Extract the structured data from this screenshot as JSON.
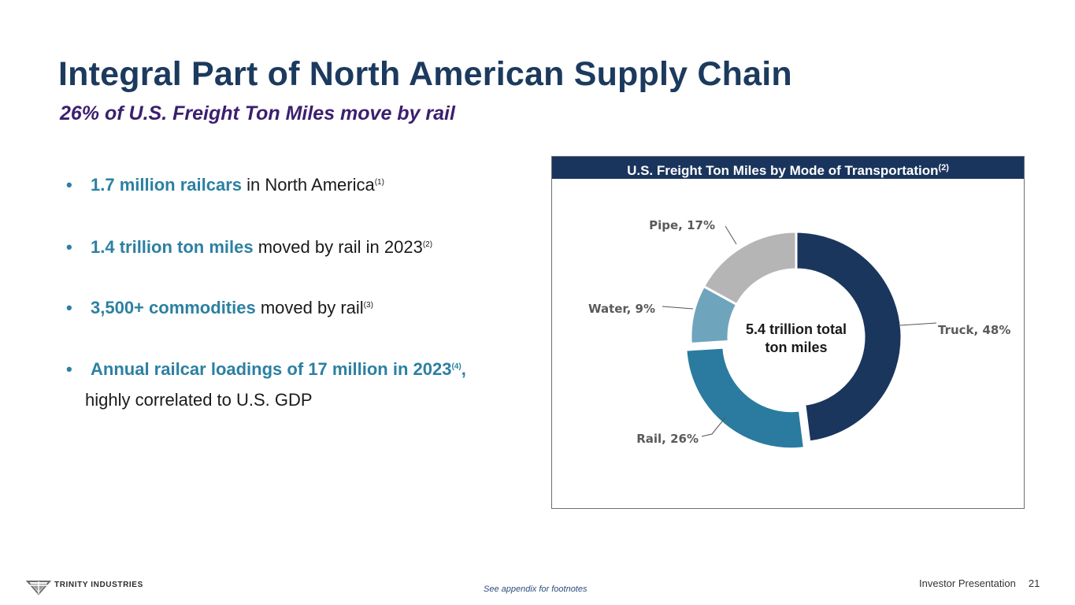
{
  "header": {
    "title": "Integral Part of North American Supply Chain",
    "subtitle": "26% of U.S. Freight Ton Miles move by rail"
  },
  "bullets": [
    {
      "highlight": "1.7 million railcars",
      "text": " in North America",
      "note": "(1)"
    },
    {
      "highlight": "1.4 trillion ton miles",
      "text": " moved by rail in 2023",
      "note": "(2)"
    },
    {
      "highlight": "3,500+ commodities",
      "text": " moved by rail",
      "note": "(3)"
    },
    {
      "highlight": "Annual railcar loadings of 17 million in 2023",
      "text": "",
      "note": "(4)",
      "comma": ",",
      "continuation": "highly correlated to U.S. GDP"
    }
  ],
  "bullet_symbol": "•",
  "chart_header": {
    "text": "U.S. Freight Ton Miles by Mode of Transportation",
    "note": "(2)"
  },
  "chart_data": {
    "type": "pie",
    "variant": "donut",
    "title": "U.S. Freight Ton Miles by Mode of Transportation",
    "center_label": [
      "5.4 trillion total",
      "ton miles"
    ],
    "unit": "%",
    "slices": [
      {
        "name": "Truck",
        "value": 48,
        "label": "Truck, 48%",
        "color": "#1b365d"
      },
      {
        "name": "Rail",
        "value": 26,
        "label": "Rail, 26%",
        "color": "#2a7b9f",
        "exploded": true
      },
      {
        "name": "Water",
        "value": 9,
        "label": "Water, 9%",
        "color": "#6ea5bc"
      },
      {
        "name": "Pipe",
        "value": 17,
        "label": "Pipe, 17%",
        "color": "#b5b5b5"
      }
    ]
  },
  "footer": {
    "brand": "TRINITY INDUSTRIES",
    "note": "See appendix for footnotes",
    "presentation": "Investor Presentation",
    "page_number": "21"
  },
  "colors": {
    "title": "#1c3a5e",
    "subtitle": "#3c1f6e",
    "accent": "#2c80a2",
    "header_bg": "#1a355d"
  }
}
